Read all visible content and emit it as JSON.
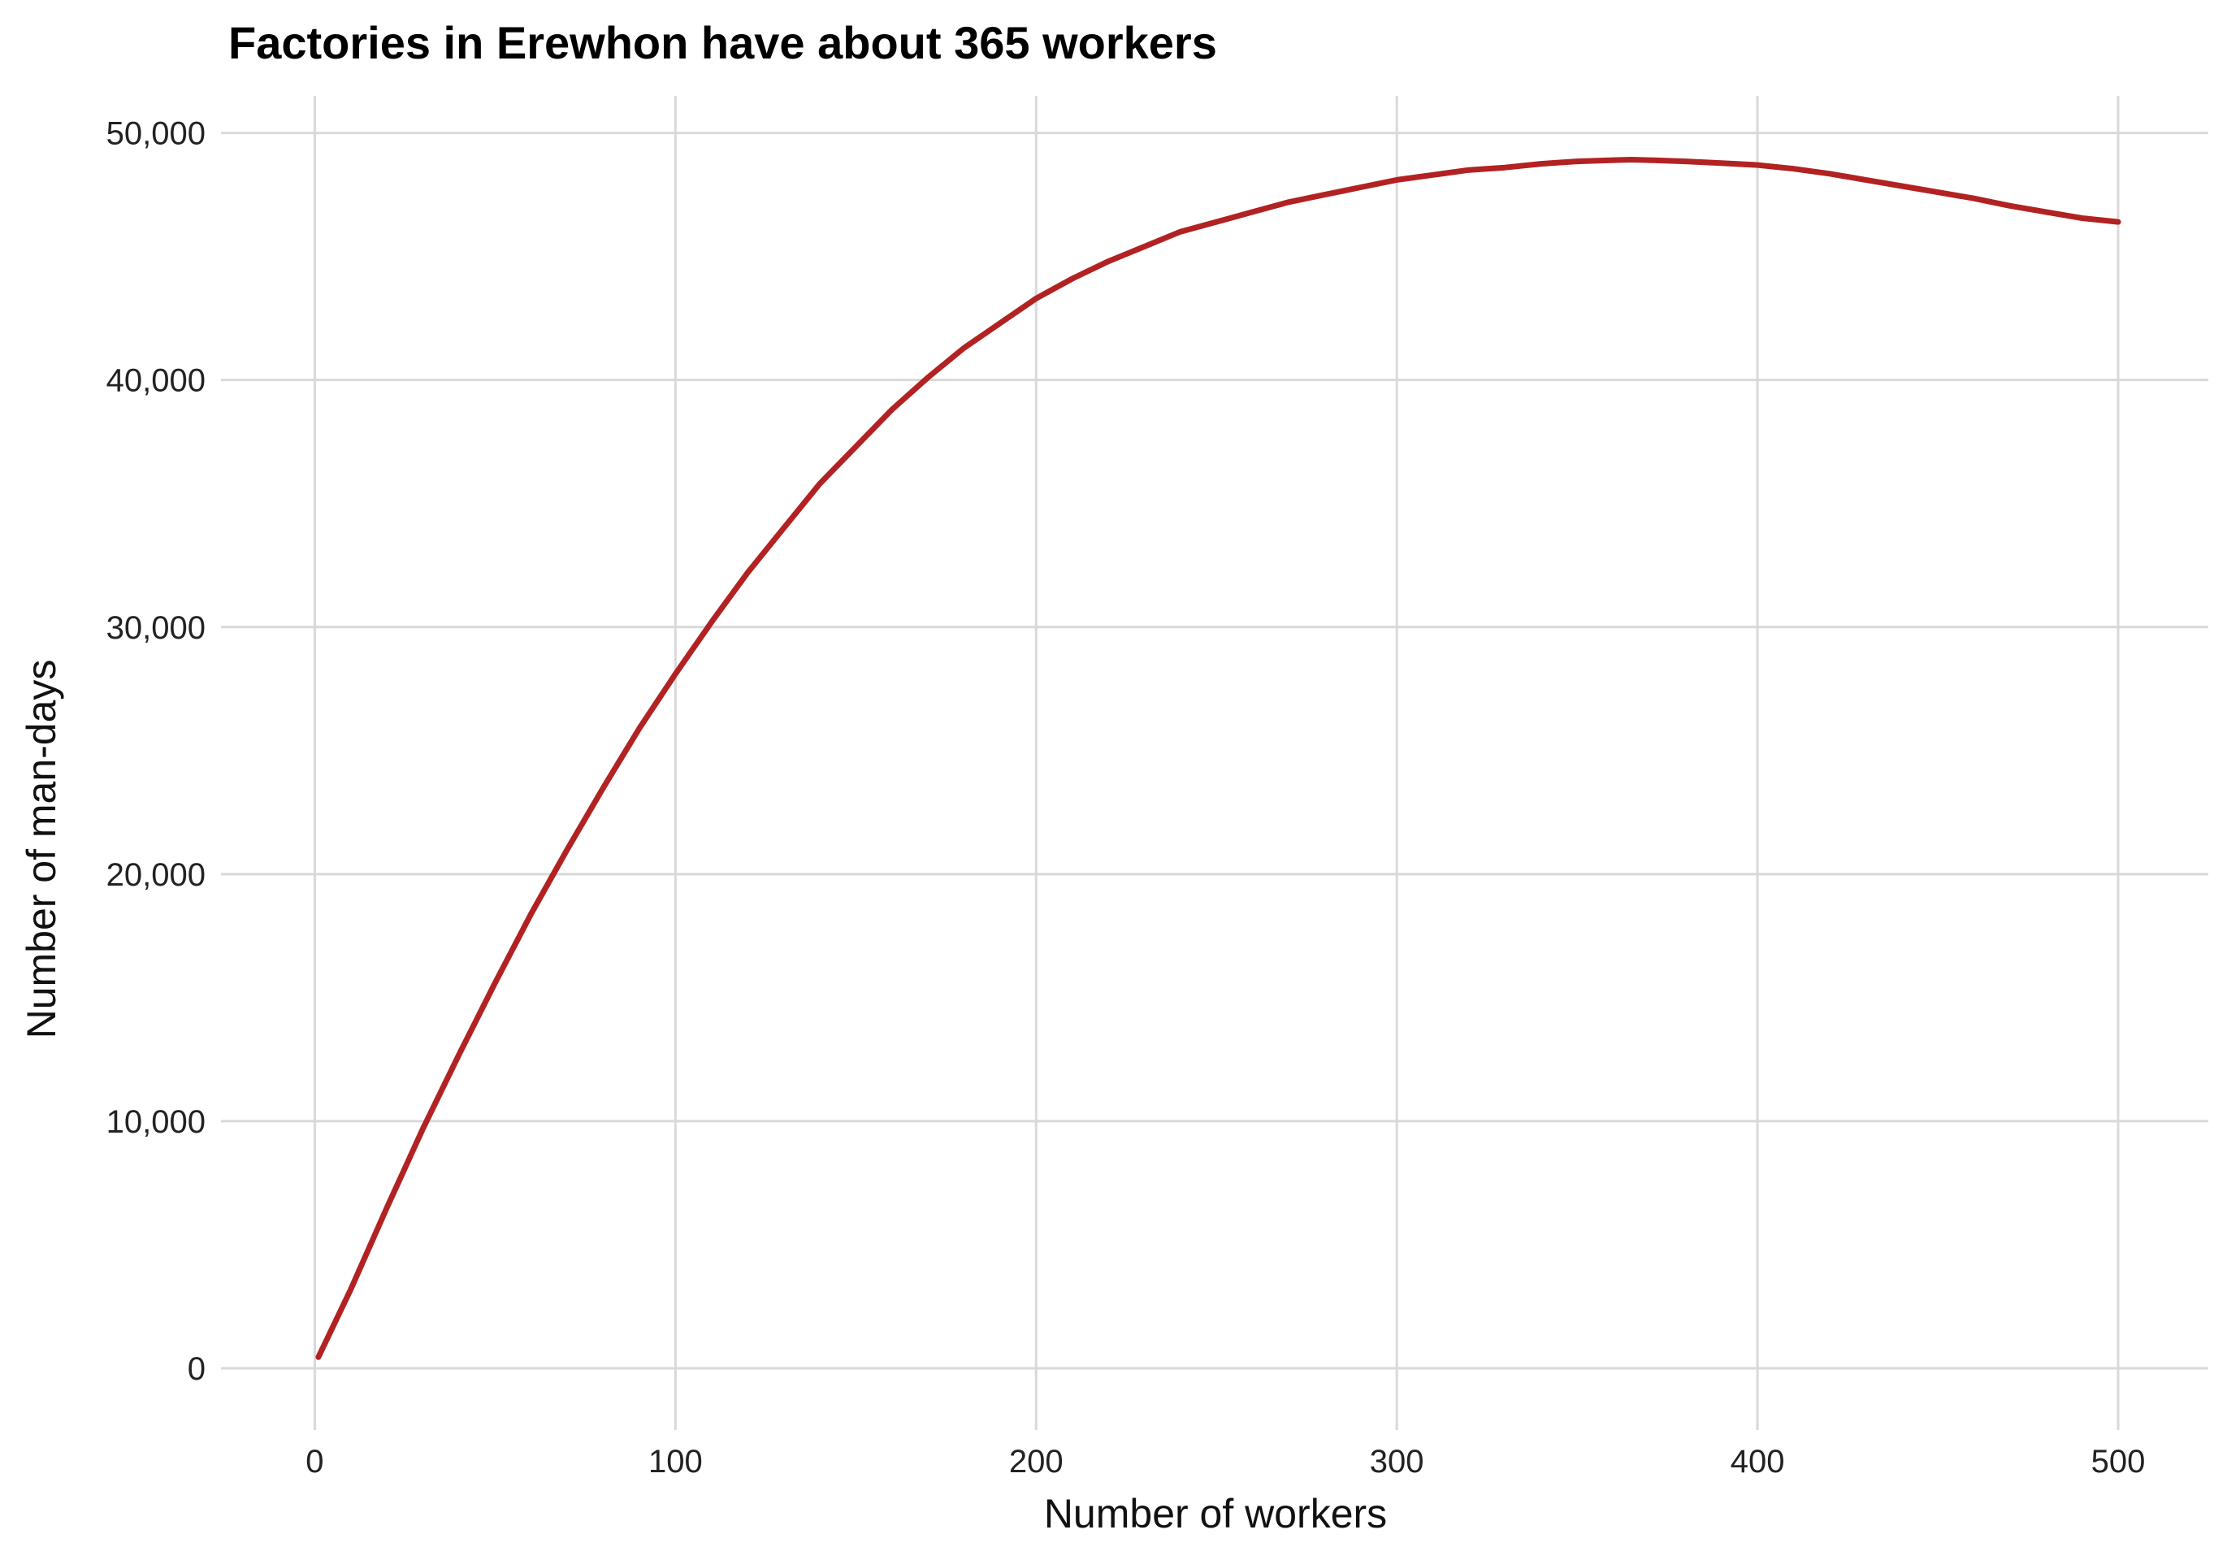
{
  "chart_data": {
    "type": "line",
    "title": "Factories in Erewhon have about 365 workers",
    "xlabel": "Number of workers",
    "ylabel": "Number of man-days",
    "xlim": [
      -26,
      525
    ],
    "ylim": [
      -2500,
      51500
    ],
    "x_ticks": [
      0,
      100,
      200,
      300,
      400,
      500
    ],
    "x_tick_labels": [
      "0",
      "100",
      "200",
      "300",
      "400",
      "500"
    ],
    "y_ticks": [
      0,
      10000,
      20000,
      30000,
      40000,
      50000
    ],
    "y_tick_labels": [
      "0",
      "10,000",
      "20,000",
      "30,000",
      "40,000",
      "50,000"
    ],
    "grid": true,
    "legend": "none",
    "line_color": "#b22222",
    "series": [
      {
        "x": [
          1,
          10,
          20,
          30,
          40,
          50,
          60,
          70,
          80,
          90,
          100,
          110,
          120,
          130,
          140,
          150,
          160,
          170,
          180,
          190,
          200,
          210,
          220,
          230,
          240,
          250,
          260,
          270,
          280,
          290,
          300,
          310,
          320,
          330,
          340,
          350,
          360,
          365,
          370,
          380,
          390,
          400,
          410,
          420,
          430,
          440,
          450,
          460,
          470,
          480,
          490,
          500
        ],
        "values": [
          450,
          3200,
          6500,
          9700,
          12700,
          15600,
          18400,
          21000,
          23500,
          25900,
          28100,
          30200,
          32200,
          34000,
          35800,
          37300,
          38800,
          40100,
          41300,
          42300,
          43300,
          44100,
          44800,
          45400,
          46000,
          46400,
          46800,
          47200,
          47500,
          47800,
          48100,
          48300,
          48500,
          48600,
          48750,
          48850,
          48900,
          48920,
          48900,
          48850,
          48780,
          48700,
          48550,
          48350,
          48100,
          47850,
          47600,
          47350,
          47050,
          46800,
          46550,
          46400
        ]
      }
    ]
  }
}
